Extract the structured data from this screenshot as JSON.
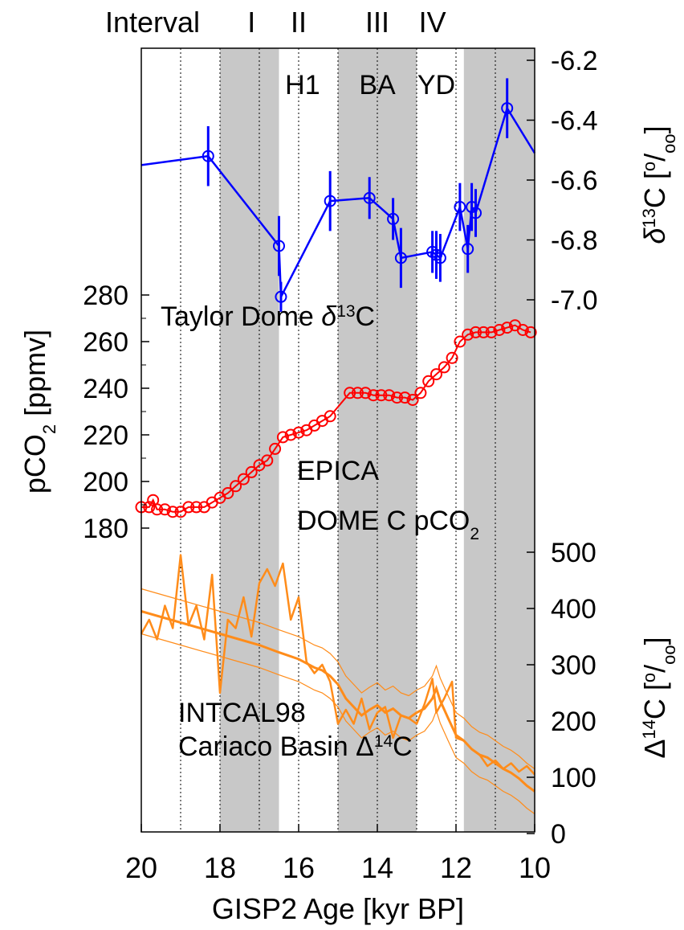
{
  "chart_data": {
    "type": "line",
    "x_axis": {
      "label": "GISP2 Age [kyr BP]",
      "range": [
        20,
        10
      ],
      "ticks": [
        20,
        18,
        16,
        14,
        12,
        10
      ],
      "minor_gridlines": [
        19,
        17,
        15,
        13,
        11
      ]
    },
    "interval_row": {
      "title": "Interval",
      "labels": [
        {
          "text": "I",
          "x": 17.2
        },
        {
          "text": "II",
          "x": 16.0
        },
        {
          "text": "III",
          "x": 14.0
        },
        {
          "text": "IV",
          "x": 12.6
        }
      ]
    },
    "shaded_bands": [
      [
        18.0,
        16.5
      ],
      [
        15.0,
        13.0
      ],
      [
        11.8,
        10.0
      ]
    ],
    "event_labels": [
      {
        "text": "H1",
        "x": 15.9
      },
      {
        "text": "BA",
        "x": 14.0
      },
      {
        "text": "YD",
        "x": 12.5
      }
    ],
    "panels": {
      "d13c": {
        "label": "Taylor Dome δ13C",
        "axis_label": "δ13C [o/oo]",
        "axis_side": "right",
        "range": [
          -7.0,
          -6.2
        ],
        "ticks": [
          -6.2,
          -6.4,
          -6.6,
          -6.8,
          -7.0
        ],
        "color": "#0000ff",
        "points": [
          {
            "x": 20.0,
            "y": -6.55,
            "err": 0
          },
          {
            "x": 18.3,
            "y": -6.52,
            "err": 0.1
          },
          {
            "x": 16.5,
            "y": -6.82,
            "err": 0.1
          },
          {
            "x": 16.45,
            "y": -6.99,
            "err": 0.05
          },
          {
            "x": 15.2,
            "y": -6.67,
            "err": 0.1
          },
          {
            "x": 14.2,
            "y": -6.66,
            "err": 0.07
          },
          {
            "x": 13.6,
            "y": -6.73,
            "err": 0.07
          },
          {
            "x": 13.4,
            "y": -6.86,
            "err": 0.1
          },
          {
            "x": 12.6,
            "y": -6.84,
            "err": 0.07
          },
          {
            "x": 12.5,
            "y": -6.85,
            "err": 0.08
          },
          {
            "x": 12.4,
            "y": -6.86,
            "err": 0.08
          },
          {
            "x": 11.9,
            "y": -6.69,
            "err": 0.08
          },
          {
            "x": 11.7,
            "y": -6.83,
            "err": 0.08
          },
          {
            "x": 11.6,
            "y": -6.69,
            "err": 0.08
          },
          {
            "x": 11.5,
            "y": -6.71,
            "err": 0.08
          },
          {
            "x": 10.7,
            "y": -6.36,
            "err": 0.1
          },
          {
            "x": 10.0,
            "y": -6.51,
            "err": 0
          }
        ]
      },
      "co2": {
        "label_line1": "EPICA",
        "label_line2": "DOME C pCO2",
        "axis_label": "pCO2 [ppmv]",
        "axis_side": "left",
        "range": [
          180,
          280
        ],
        "ticks": [
          180,
          200,
          220,
          240,
          260,
          280
        ],
        "color": "#ff0000",
        "x": [
          20.0,
          19.8,
          19.7,
          19.6,
          19.4,
          19.2,
          19.0,
          18.8,
          18.6,
          18.4,
          18.2,
          18.0,
          17.8,
          17.6,
          17.4,
          17.2,
          17.0,
          16.8,
          16.6,
          16.4,
          16.2,
          16.0,
          15.8,
          15.6,
          15.4,
          15.2,
          14.7,
          14.5,
          14.3,
          14.1,
          13.9,
          13.7,
          13.5,
          13.3,
          13.1,
          12.9,
          12.7,
          12.5,
          12.3,
          12.1,
          11.9,
          11.7,
          11.5,
          11.3,
          11.1,
          10.9,
          10.7,
          10.5,
          10.3,
          10.1
        ],
        "y": [
          189,
          189,
          192,
          188,
          188,
          187,
          187,
          189,
          189,
          189,
          191,
          193,
          195,
          198,
          201,
          204,
          207,
          209,
          214,
          219,
          220,
          221,
          222,
          224,
          226,
          228,
          238,
          238,
          238,
          237,
          237,
          237,
          236,
          236,
          235,
          238,
          243,
          246,
          249,
          253,
          260,
          263,
          264,
          264,
          264,
          265,
          266,
          267,
          265,
          264
        ]
      },
      "d14c": {
        "label_line1": "INTCAL98",
        "label_line2": "Cariaco Basin   Δ14C",
        "axis_label": "Δ14C [o/oo]",
        "axis_side": "right",
        "range": [
          0,
          500
        ],
        "ticks": [
          0,
          100,
          200,
          300,
          400,
          500
        ],
        "color": "#ff8c1a",
        "intcal98_x": [
          20.0,
          19.0,
          18.0,
          17.0,
          16.5,
          16.0,
          15.6,
          15.4,
          15.2,
          15.0,
          14.8,
          14.6,
          14.4,
          14.2,
          14.0,
          13.8,
          13.6,
          13.4,
          13.2,
          13.0,
          12.8,
          12.6,
          12.5,
          12.4,
          12.2,
          12.0,
          11.8,
          11.6,
          11.4,
          11.2,
          11.0,
          10.8,
          10.6,
          10.4,
          10.2,
          10.0
        ],
        "intcal98_y": [
          395,
          375,
          355,
          335,
          322,
          310,
          295,
          290,
          280,
          265,
          240,
          225,
          210,
          220,
          228,
          215,
          222,
          210,
          205,
          215,
          222,
          240,
          258,
          236,
          205,
          175,
          165,
          150,
          140,
          135,
          125,
          115,
          108,
          98,
          85,
          75
        ],
        "cariaco_x": [
          20.0,
          19.8,
          19.6,
          19.4,
          19.2,
          19.0,
          18.8,
          18.6,
          18.4,
          18.2,
          18.0,
          17.8,
          17.6,
          17.4,
          17.2,
          17.0,
          16.8,
          16.6,
          16.4,
          16.2,
          16.0,
          15.8,
          15.6,
          15.4,
          15.2,
          15.0,
          14.8,
          14.6,
          14.4,
          14.2,
          14.0,
          13.8,
          13.6,
          13.4,
          13.2,
          13.0,
          12.8,
          12.6,
          12.5,
          12.3,
          12.1,
          12.0,
          11.8,
          11.6,
          11.4,
          11.2,
          11.0,
          10.8,
          10.6,
          10.4,
          10.2,
          10.0
        ],
        "cariaco_y": [
          355,
          380,
          345,
          405,
          365,
          495,
          370,
          405,
          345,
          460,
          250,
          380,
          365,
          420,
          350,
          445,
          470,
          440,
          480,
          380,
          420,
          305,
          285,
          300,
          270,
          195,
          220,
          195,
          240,
          185,
          215,
          225,
          170,
          210,
          205,
          195,
          230,
          275,
          215,
          240,
          270,
          170,
          165,
          150,
          140,
          120,
          130,
          115,
          125,
          110,
          120,
          105
        ]
      }
    }
  }
}
